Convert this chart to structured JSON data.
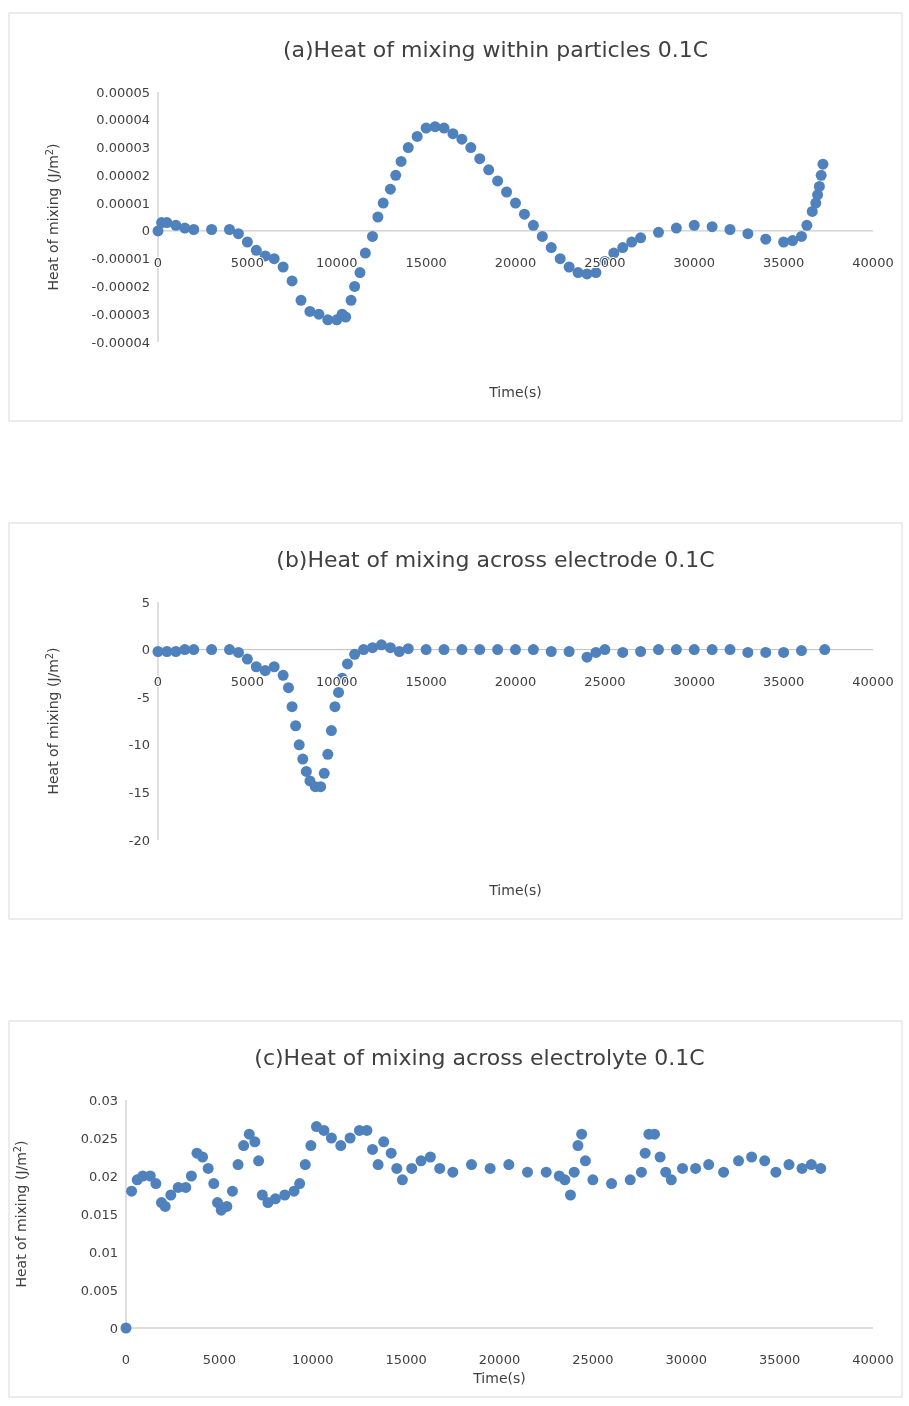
{
  "chart_data": [
    {
      "type": "scatter",
      "title": "(a)Heat of mixing within particles 0.1C",
      "xlabel": "Time(s)",
      "ylabel": "Heat of mixing (J/m$^{2}$)",
      "color": "#4f81bd",
      "marker": "circle",
      "xlim": [
        0,
        40000
      ],
      "xticks": [
        0,
        5000,
        10000,
        15000,
        20000,
        25000,
        30000,
        35000,
        40000
      ],
      "ylim": [
        -4e-05,
        5e-05
      ],
      "yticks": [
        {
          "value": -4e-05,
          "label": "-0.00004"
        },
        {
          "value": -3e-05,
          "label": "-0.00003"
        },
        {
          "value": -2e-05,
          "label": "-0.00002"
        },
        {
          "value": -1e-05,
          "label": "-0.00001"
        },
        0,
        {
          "value": 1e-05,
          "label": "0.00001"
        },
        {
          "value": 2e-05,
          "label": "0.00002"
        },
        {
          "value": 3e-05,
          "label": "0.00003"
        },
        {
          "value": 4e-05,
          "label": "0.00004"
        },
        {
          "value": 5e-05,
          "label": "0.00005"
        }
      ],
      "x": [
        0,
        200,
        500,
        1000,
        1500,
        2000,
        3000,
        4000,
        4500,
        5000,
        5500,
        6000,
        6500,
        7000,
        7500,
        8000,
        8500,
        9000,
        9500,
        10000,
        10300,
        10500,
        10800,
        11000,
        11300,
        11600,
        12000,
        12300,
        12600,
        13000,
        13300,
        13600,
        14000,
        14500,
        15000,
        15500,
        16000,
        16500,
        17000,
        17500,
        18000,
        18500,
        19000,
        19500,
        20000,
        20500,
        21000,
        21500,
        22000,
        22500,
        23000,
        23500,
        24000,
        24500,
        25000,
        25500,
        26000,
        26500,
        27000,
        28000,
        29000,
        30000,
        31000,
        32000,
        33000,
        34000,
        35000,
        35500,
        36000,
        36300,
        36600,
        36800,
        36900,
        37000,
        37100,
        37200
      ],
      "values": [
        0,
        3e-06,
        3e-06,
        2e-06,
        1e-06,
        5e-07,
        5e-07,
        5e-07,
        -1e-06,
        -4e-06,
        -7e-06,
        -9e-06,
        -1e-05,
        -1.3e-05,
        -1.8e-05,
        -2.5e-05,
        -2.9e-05,
        -3e-05,
        -3.2e-05,
        -3.2e-05,
        -3e-05,
        -3.1e-05,
        -2.5e-05,
        -2e-05,
        -1.5e-05,
        -8e-06,
        -2e-06,
        5e-06,
        1e-05,
        1.5e-05,
        2e-05,
        2.5e-05,
        3e-05,
        3.4e-05,
        3.7e-05,
        3.75e-05,
        3.7e-05,
        3.5e-05,
        3.3e-05,
        3e-05,
        2.6e-05,
        2.2e-05,
        1.8e-05,
        1.4e-05,
        1e-05,
        6e-06,
        2e-06,
        -2e-06,
        -6e-06,
        -1e-05,
        -1.3e-05,
        -1.5e-05,
        -1.55e-05,
        -1.5e-05,
        -1.1e-05,
        -8e-06,
        -6e-06,
        -4e-06,
        -2.5e-06,
        -5e-07,
        1e-06,
        2e-06,
        1.5e-06,
        5e-07,
        -1e-06,
        -3e-06,
        -4e-06,
        -3.5e-06,
        -2e-06,
        2e-06,
        7e-06,
        1e-05,
        1.3e-05,
        1.6e-05,
        2e-05,
        2.4e-05
      ]
    },
    {
      "type": "scatter",
      "title": "(b)Heat of mixing across electrode 0.1C",
      "xlabel": "Time(s)",
      "ylabel": "Heat of mixing (J/m$^{2}$)",
      "color": "#4f81bd",
      "marker": "circle",
      "xlim": [
        0,
        40000
      ],
      "xticks": [
        0,
        5000,
        10000,
        15000,
        20000,
        25000,
        30000,
        35000,
        40000
      ],
      "ylim": [
        -20,
        5
      ],
      "yticks": [
        -20,
        -15,
        -10,
        -5,
        0,
        5
      ],
      "x": [
        0,
        500,
        1000,
        1500,
        2000,
        3000,
        4000,
        4500,
        5000,
        5500,
        6000,
        6500,
        7000,
        7300,
        7500,
        7700,
        7900,
        8100,
        8300,
        8500,
        8800,
        9100,
        9300,
        9500,
        9700,
        9900,
        10100,
        10300,
        10600,
        11000,
        11500,
        12000,
        12500,
        13000,
        13500,
        14000,
        15000,
        16000,
        17000,
        18000,
        19000,
        20000,
        21000,
        22000,
        23000,
        24000,
        24500,
        25000,
        26000,
        27000,
        28000,
        29000,
        30000,
        31000,
        32000,
        33000,
        34000,
        35000,
        36000,
        37300
      ],
      "values": [
        -0.2,
        -0.2,
        -0.2,
        0,
        0,
        0,
        0,
        -0.3,
        -1,
        -1.8,
        -2.2,
        -1.8,
        -2.7,
        -4,
        -6,
        -8,
        -10,
        -11.5,
        -12.8,
        -13.8,
        -14.4,
        -14.4,
        -13,
        -11,
        -8.5,
        -6,
        -4.5,
        -3,
        -1.5,
        -0.5,
        0,
        0.2,
        0.5,
        0.2,
        -0.2,
        0.1,
        0,
        0,
        0,
        0,
        0,
        0,
        0,
        -0.2,
        -0.2,
        -0.8,
        -0.3,
        0,
        -0.3,
        -0.2,
        0,
        0,
        0,
        0,
        0,
        -0.3,
        -0.3,
        -0.3,
        -0.1,
        0
      ]
    },
    {
      "type": "scatter",
      "title": "(c)Heat of mixing across electrolyte 0.1C",
      "xlabel": "Time(s)",
      "ylabel": "Heat of mixing (J/m$^{2}$)",
      "color": "#4f81bd",
      "marker": "circle",
      "xlim": [
        0,
        40000
      ],
      "xticks": [
        0,
        5000,
        10000,
        15000,
        20000,
        25000,
        30000,
        35000,
        40000
      ],
      "ylim": [
        0,
        0.03
      ],
      "yticks": [
        0,
        0.005,
        0.01,
        0.015,
        0.02,
        0.025,
        0.03
      ],
      "x": [
        0,
        300,
        600,
        900,
        1300,
        1600,
        1900,
        2100,
        2400,
        2800,
        3200,
        3500,
        3800,
        4100,
        4400,
        4700,
        4900,
        5100,
        5400,
        5700,
        6000,
        6300,
        6600,
        6900,
        7100,
        7300,
        7600,
        8000,
        8500,
        9000,
        9300,
        9600,
        9900,
        10200,
        10600,
        11000,
        11500,
        12000,
        12500,
        12900,
        13200,
        13500,
        13800,
        14200,
        14500,
        14800,
        15300,
        15800,
        16300,
        16800,
        17500,
        18500,
        19500,
        20500,
        21500,
        22500,
        23200,
        23500,
        23800,
        24000,
        24200,
        24400,
        24600,
        25000,
        26000,
        27000,
        27600,
        27800,
        28000,
        28300,
        28600,
        28900,
        29200,
        29800,
        30500,
        31200,
        32000,
        32800,
        33500,
        34200,
        34800,
        35500,
        36200,
        36700,
        37200
      ],
      "values": [
        0,
        0.018,
        0.0195,
        0.02,
        0.02,
        0.019,
        0.0165,
        0.016,
        0.0175,
        0.0185,
        0.0185,
        0.02,
        0.023,
        0.0225,
        0.021,
        0.019,
        0.0165,
        0.0155,
        0.016,
        0.018,
        0.0215,
        0.024,
        0.0255,
        0.0245,
        0.022,
        0.0175,
        0.0165,
        0.017,
        0.0175,
        0.018,
        0.019,
        0.0215,
        0.024,
        0.0265,
        0.026,
        0.025,
        0.024,
        0.025,
        0.026,
        0.026,
        0.0235,
        0.0215,
        0.0245,
        0.023,
        0.021,
        0.0195,
        0.021,
        0.022,
        0.0225,
        0.021,
        0.0205,
        0.0215,
        0.021,
        0.0215,
        0.0205,
        0.0205,
        0.02,
        0.0195,
        0.0175,
        0.0205,
        0.024,
        0.0255,
        0.022,
        0.0195,
        0.019,
        0.0195,
        0.0205,
        0.023,
        0.0255,
        0.0255,
        0.0225,
        0.0205,
        0.0195,
        0.021,
        0.021,
        0.0215,
        0.0205,
        0.022,
        0.0225,
        0.022,
        0.0205,
        0.0215,
        0.021,
        0.0215,
        0.021
      ]
    }
  ]
}
